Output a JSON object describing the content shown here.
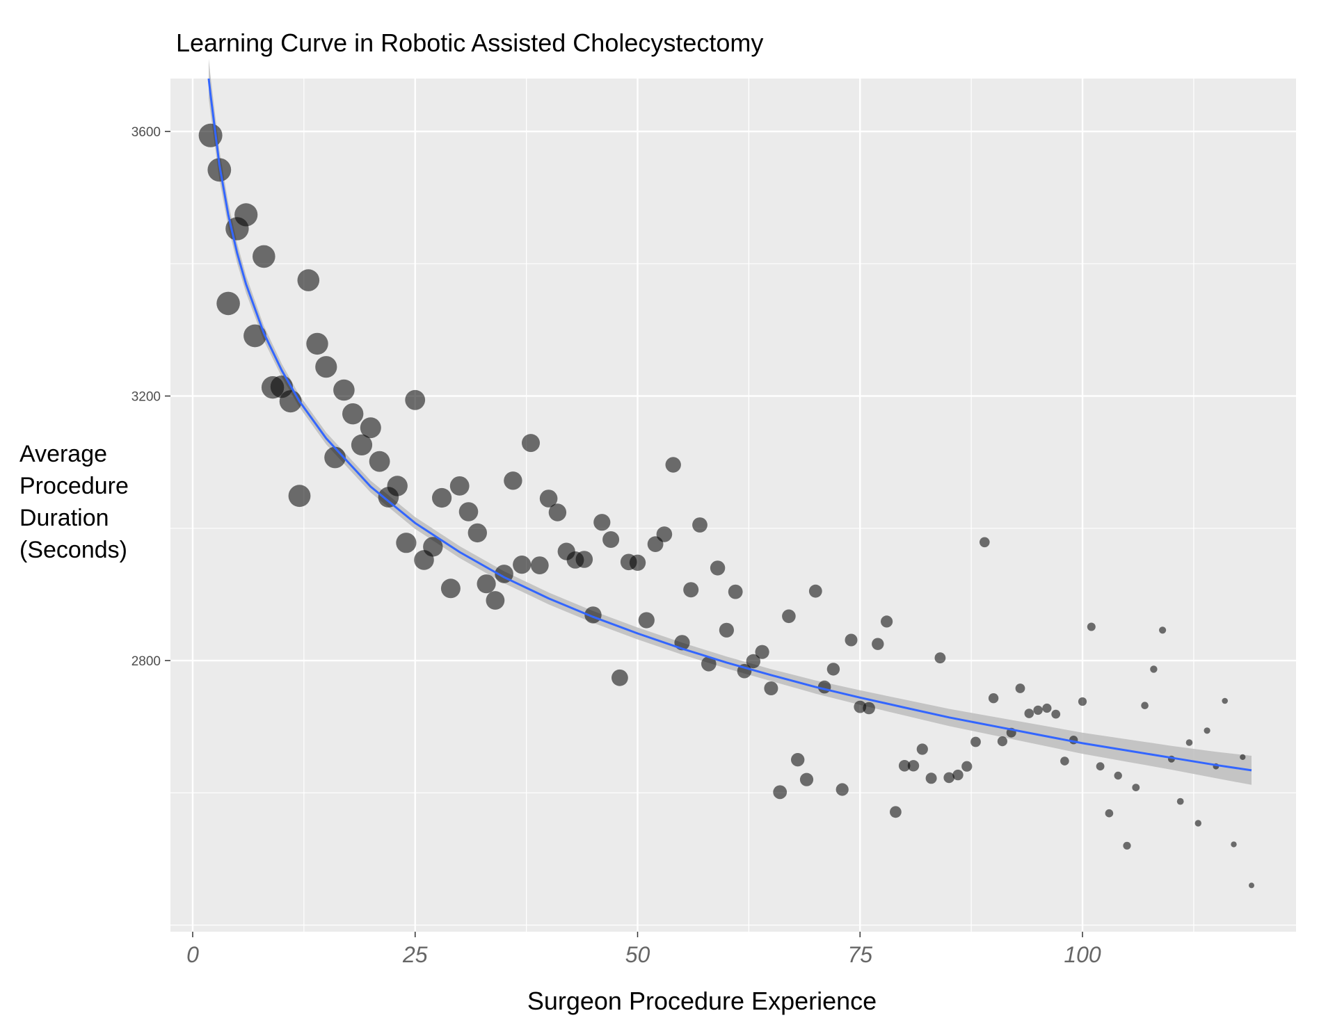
{
  "chart_data": {
    "type": "scatter",
    "title": "Learning Curve in Robotic Assisted Cholecystectomy",
    "xlabel": "Surgeon Procedure Experience",
    "ylabel_lines": [
      "Average",
      "Procedure",
      "Duration",
      "(Seconds)"
    ],
    "xlim": [
      -2.5,
      124
    ],
    "ylim": [
      2390,
      3680
    ],
    "x_ticks": [
      0,
      25,
      50,
      75,
      100
    ],
    "y_ticks": [
      2800,
      3200,
      3600
    ],
    "grid": true,
    "colors": {
      "panel": "#ebebeb",
      "grid_major": "#ffffff",
      "point": "#000000",
      "point_alpha": 0.55,
      "fit_line": "#3366ff",
      "ribbon": "#bdbdbd"
    },
    "points": [
      {
        "x": 2,
        "y": 3594
      },
      {
        "x": 3,
        "y": 3542
      },
      {
        "x": 4,
        "y": 3340
      },
      {
        "x": 5,
        "y": 3453
      },
      {
        "x": 6,
        "y": 3474
      },
      {
        "x": 7,
        "y": 3291
      },
      {
        "x": 8,
        "y": 3411
      },
      {
        "x": 9,
        "y": 3213
      },
      {
        "x": 10,
        "y": 3214
      },
      {
        "x": 11,
        "y": 3192
      },
      {
        "x": 12,
        "y": 3049
      },
      {
        "x": 13,
        "y": 3375
      },
      {
        "x": 14,
        "y": 3279
      },
      {
        "x": 15,
        "y": 3244
      },
      {
        "x": 16,
        "y": 3107
      },
      {
        "x": 17,
        "y": 3209
      },
      {
        "x": 18,
        "y": 3173
      },
      {
        "x": 19,
        "y": 3126
      },
      {
        "x": 20,
        "y": 3152
      },
      {
        "x": 21,
        "y": 3101
      },
      {
        "x": 22,
        "y": 3047
      },
      {
        "x": 23,
        "y": 3064
      },
      {
        "x": 24,
        "y": 2978
      },
      {
        "x": 25,
        "y": 3194
      },
      {
        "x": 26,
        "y": 2952
      },
      {
        "x": 27,
        "y": 2972
      },
      {
        "x": 28,
        "y": 3046
      },
      {
        "x": 29,
        "y": 2909
      },
      {
        "x": 30,
        "y": 3064
      },
      {
        "x": 31,
        "y": 3025
      },
      {
        "x": 32,
        "y": 2993
      },
      {
        "x": 33,
        "y": 2916
      },
      {
        "x": 34,
        "y": 2891
      },
      {
        "x": 35,
        "y": 2931
      },
      {
        "x": 36,
        "y": 3072
      },
      {
        "x": 37,
        "y": 2945
      },
      {
        "x": 38,
        "y": 3129
      },
      {
        "x": 39,
        "y": 2944
      },
      {
        "x": 40,
        "y": 3045
      },
      {
        "x": 41,
        "y": 3024
      },
      {
        "x": 42,
        "y": 2965
      },
      {
        "x": 43,
        "y": 2952
      },
      {
        "x": 44,
        "y": 2953
      },
      {
        "x": 45,
        "y": 2869
      },
      {
        "x": 46,
        "y": 3009
      },
      {
        "x": 47,
        "y": 2983
      },
      {
        "x": 48,
        "y": 2774
      },
      {
        "x": 49,
        "y": 2949
      },
      {
        "x": 50,
        "y": 2948
      },
      {
        "x": 51,
        "y": 2861
      },
      {
        "x": 52,
        "y": 2976
      },
      {
        "x": 53,
        "y": 2991
      },
      {
        "x": 54,
        "y": 3096
      },
      {
        "x": 55,
        "y": 2827
      },
      {
        "x": 56,
        "y": 2907
      },
      {
        "x": 57,
        "y": 3005
      },
      {
        "x": 58,
        "y": 2795
      },
      {
        "x": 59,
        "y": 2940
      },
      {
        "x": 60,
        "y": 2846
      },
      {
        "x": 61,
        "y": 2904
      },
      {
        "x": 62,
        "y": 2784
      },
      {
        "x": 63,
        "y": 2799
      },
      {
        "x": 64,
        "y": 2813
      },
      {
        "x": 65,
        "y": 2758
      },
      {
        "x": 66,
        "y": 2601
      },
      {
        "x": 67,
        "y": 2867
      },
      {
        "x": 68,
        "y": 2650
      },
      {
        "x": 69,
        "y": 2620
      },
      {
        "x": 70,
        "y": 2905
      },
      {
        "x": 71,
        "y": 2760
      },
      {
        "x": 72,
        "y": 2787
      },
      {
        "x": 73,
        "y": 2605
      },
      {
        "x": 74,
        "y": 2831
      },
      {
        "x": 75,
        "y": 2730
      },
      {
        "x": 76,
        "y": 2728
      },
      {
        "x": 77,
        "y": 2825
      },
      {
        "x": 78,
        "y": 2859
      },
      {
        "x": 79,
        "y": 2571
      },
      {
        "x": 80,
        "y": 2641
      },
      {
        "x": 81,
        "y": 2641
      },
      {
        "x": 82,
        "y": 2666
      },
      {
        "x": 83,
        "y": 2622
      },
      {
        "x": 84,
        "y": 2804
      },
      {
        "x": 85,
        "y": 2623
      },
      {
        "x": 86,
        "y": 2627
      },
      {
        "x": 87,
        "y": 2640
      },
      {
        "x": 88,
        "y": 2677
      },
      {
        "x": 89,
        "y": 2979
      },
      {
        "x": 90,
        "y": 2743
      },
      {
        "x": 91,
        "y": 2678
      },
      {
        "x": 92,
        "y": 2691
      },
      {
        "x": 93,
        "y": 2758
      },
      {
        "x": 94,
        "y": 2720
      },
      {
        "x": 95,
        "y": 2725
      },
      {
        "x": 96,
        "y": 2728
      },
      {
        "x": 97,
        "y": 2719
      },
      {
        "x": 98,
        "y": 2648
      },
      {
        "x": 99,
        "y": 2680
      },
      {
        "x": 100,
        "y": 2738
      },
      {
        "x": 101,
        "y": 2851
      },
      {
        "x": 102,
        "y": 2640
      },
      {
        "x": 103,
        "y": 2569
      },
      {
        "x": 104,
        "y": 2626
      },
      {
        "x": 105,
        "y": 2520
      },
      {
        "x": 106,
        "y": 2608
      },
      {
        "x": 107,
        "y": 2732
      },
      {
        "x": 108,
        "y": 2787
      },
      {
        "x": 109,
        "y": 2846
      },
      {
        "x": 110,
        "y": 2651
      },
      {
        "x": 111,
        "y": 2587
      },
      {
        "x": 112,
        "y": 2676
      },
      {
        "x": 113,
        "y": 2554
      },
      {
        "x": 114,
        "y": 2694
      },
      {
        "x": 115,
        "y": 2640
      },
      {
        "x": 116,
        "y": 2739
      },
      {
        "x": 117,
        "y": 2522
      },
      {
        "x": 118,
        "y": 2654
      },
      {
        "x": 119,
        "y": 2460
      }
    ],
    "point_size_range": [
      8,
      34
    ],
    "fit_line": {
      "x": [
        1.8,
        2,
        3,
        4,
        5,
        6,
        8,
        10,
        12,
        15,
        20,
        25,
        30,
        35,
        40,
        45,
        50,
        55,
        60,
        65,
        70,
        75,
        80,
        85,
        90,
        95,
        100,
        105,
        110,
        115,
        119
      ],
      "y": [
        3680,
        3656,
        3550,
        3474,
        3416,
        3369,
        3295,
        3239,
        3192,
        3136,
        3063,
        3008,
        2964,
        2926,
        2894,
        2866,
        2841,
        2818,
        2797,
        2778,
        2760,
        2744,
        2729,
        2714,
        2701,
        2688,
        2675,
        2664,
        2653,
        2642,
        2634
      ],
      "ribbon_halfwidth": [
        30,
        28,
        22,
        18,
        15,
        13,
        11,
        10,
        9,
        9,
        9,
        9,
        9,
        9,
        9,
        9,
        9,
        9,
        9,
        9,
        10,
        11,
        12,
        13,
        14,
        15,
        16,
        17,
        18,
        20,
        22
      ]
    }
  }
}
